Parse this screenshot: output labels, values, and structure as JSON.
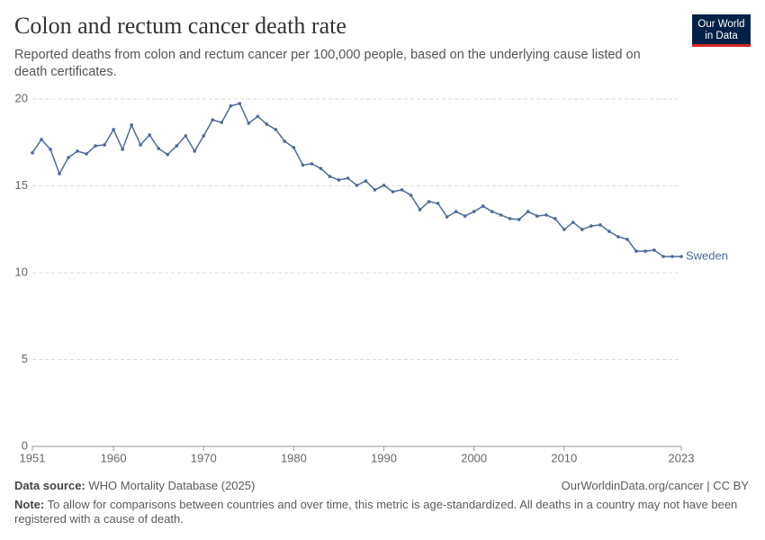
{
  "chart_data": {
    "type": "line",
    "title": "Colon and rectum cancer death rate",
    "subtitle": "Reported deaths from colon and rectum cancer per 100,000 people, based on the underlying cause listed on death certificates.",
    "logo": [
      "Our World",
      "in Data"
    ],
    "source_label": "Data source:",
    "source": "WHO Mortality Database (2025)",
    "url": "OurWorldinData.org/cancer | CC BY",
    "note_label": "Note:",
    "note": "To allow for comparisons between countries and over time, this metric is age-standardized. All deaths in a country may not have been registered with a cause of death.",
    "x": [
      1951,
      1952,
      1953,
      1954,
      1955,
      1956,
      1957,
      1958,
      1959,
      1960,
      1961,
      1962,
      1963,
      1964,
      1965,
      1966,
      1967,
      1968,
      1969,
      1970,
      1971,
      1972,
      1973,
      1974,
      1975,
      1976,
      1977,
      1978,
      1979,
      1980,
      1981,
      1982,
      1983,
      1984,
      1985,
      1986,
      1987,
      1988,
      1989,
      1990,
      1991,
      1992,
      1993,
      1994,
      1995,
      1996,
      1997,
      1998,
      1999,
      2000,
      2001,
      2002,
      2003,
      2004,
      2005,
      2006,
      2007,
      2008,
      2009,
      2010,
      2011,
      2012,
      2013,
      2014,
      2015,
      2016,
      2017,
      2018,
      2019,
      2020,
      2021,
      2022,
      2023
    ],
    "series": [
      {
        "name": "Sweden",
        "color": "#4c6a9c",
        "values": [
          16.9,
          17.67,
          17.1,
          15.7,
          16.63,
          17.0,
          16.84,
          17.3,
          17.36,
          18.24,
          17.1,
          18.5,
          17.36,
          17.93,
          17.15,
          16.8,
          17.3,
          17.88,
          17.0,
          17.88,
          18.8,
          18.65,
          19.6,
          19.74,
          18.6,
          19.0,
          18.55,
          18.24,
          17.56,
          17.2,
          16.2,
          16.27,
          16.0,
          15.54,
          15.34,
          15.44,
          15.03,
          15.28,
          14.77,
          15.03,
          14.66,
          14.77,
          14.46,
          13.63,
          14.09,
          13.99,
          13.21,
          13.52,
          13.26,
          13.52,
          13.83,
          13.52,
          13.32,
          13.11,
          13.06,
          13.52,
          13.26,
          13.32,
          13.11,
          12.49,
          12.9,
          12.49,
          12.69,
          12.75,
          12.38,
          12.07,
          11.92,
          11.24,
          11.24,
          11.3,
          10.93,
          10.93,
          10.93
        ]
      }
    ],
    "xlim": [
      1951,
      2023
    ],
    "xticks": [
      1951,
      1960,
      1970,
      1980,
      1990,
      2000,
      2010,
      2023
    ],
    "ylim": [
      0,
      20
    ],
    "yticks": [
      0,
      5,
      10,
      15,
      20
    ],
    "grid": true
  }
}
